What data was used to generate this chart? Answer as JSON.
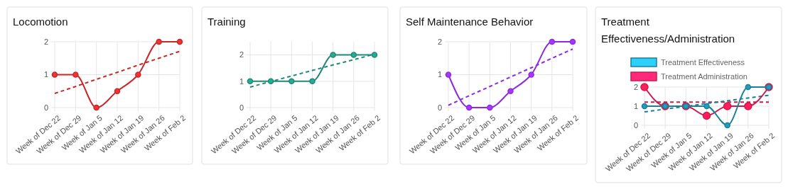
{
  "chart_data": [
    {
      "type": "line",
      "title": "Locomotion",
      "categories": [
        "Week of Dec 22",
        "Week of Dec 29",
        "Week of Jan 5",
        "Week of Jan 12",
        "Week of Jan 19",
        "Week of Jan 26",
        "Week of Feb 2"
      ],
      "ylim": [
        0,
        2
      ],
      "yticks": [
        0,
        1,
        2
      ],
      "grid": true,
      "legend": false,
      "series": [
        {
          "color": "#c62828",
          "values": [
            1,
            1,
            0,
            0.5,
            1,
            2,
            2
          ],
          "marker": "circle",
          "line_style": "solid"
        },
        {
          "color": "#c62828",
          "values": [
            0.43,
            0.64,
            0.86,
            1.07,
            1.29,
            1.5,
            1.71
          ],
          "marker": "none",
          "line_style": "dashed"
        }
      ]
    },
    {
      "type": "line",
      "title": "Training",
      "categories": [
        "Week of Dec 22",
        "Week of Dec 29",
        "Week of Jan 5",
        "Week of Jan 12",
        "Week of Jan 19",
        "Week of Jan 26",
        "Week of Feb 2"
      ],
      "ylim": [
        0,
        2.5
      ],
      "yticks": [
        0,
        1,
        2
      ],
      "grid": true,
      "legend": false,
      "series": [
        {
          "color": "#1f8a78",
          "values": [
            1,
            1,
            1,
            1,
            2,
            2,
            2
          ],
          "marker": "circle",
          "line_style": "solid"
        },
        {
          "color": "#1f8a78",
          "values": [
            0.78,
            0.99,
            1.2,
            1.41,
            1.62,
            1.82,
            2.03
          ],
          "marker": "none",
          "line_style": "dashed"
        }
      ]
    },
    {
      "type": "line",
      "title": "Self Maintenance Behavior",
      "categories": [
        "Week of Dec 22",
        "Week of Dec 29",
        "Week of Jan 5",
        "Week of Jan 12",
        "Week of Jan 19",
        "Week of Jan 26",
        "Week of Feb 2"
      ],
      "ylim": [
        0,
        2
      ],
      "yticks": [
        0,
        1,
        2
      ],
      "grid": true,
      "legend": false,
      "series": [
        {
          "color": "#8a2be2",
          "values": [
            1,
            0,
            0,
            0.5,
            1,
            2,
            2
          ],
          "marker": "circle",
          "line_style": "solid"
        },
        {
          "color": "#8a2be2",
          "values": [
            0.07,
            0.36,
            0.64,
            0.93,
            1.21,
            1.5,
            1.78
          ],
          "marker": "none",
          "line_style": "dashed"
        }
      ]
    },
    {
      "type": "line",
      "title": "Treatment Effectiveness/Administration",
      "categories": [
        "Week of Dec 22",
        "Week of Dec 29",
        "Week of Jan 5",
        "Week of Jan 12",
        "Week of Jan 19",
        "Week of Jan 26",
        "Week of Feb 2"
      ],
      "ylim": [
        0,
        2
      ],
      "yticks": [
        0,
        1,
        2
      ],
      "grid": true,
      "legend": "top",
      "series": [
        {
          "name": "Treatment Effectiveness",
          "color": "#1a7f99",
          "values": [
            1,
            1,
            1,
            1,
            0,
            2,
            2
          ],
          "marker": "circle",
          "line_style": "solid"
        },
        {
          "name": "Treatment Administration",
          "color": "#d0184a",
          "values": [
            2,
            1,
            1,
            0.5,
            1,
            1,
            2
          ],
          "marker": "circle",
          "line_style": "solid"
        },
        {
          "color": "#1a7f99",
          "values": [
            0.7,
            0.85,
            0.99,
            1.14,
            1.28,
            1.43,
            1.57
          ],
          "marker": "none",
          "line_style": "dashed"
        },
        {
          "color": "#d0184a",
          "values": [
            1.21,
            1.21,
            1.21,
            1.21,
            1.21,
            1.21,
            1.21
          ],
          "marker": "none",
          "line_style": "dashed"
        }
      ]
    }
  ]
}
